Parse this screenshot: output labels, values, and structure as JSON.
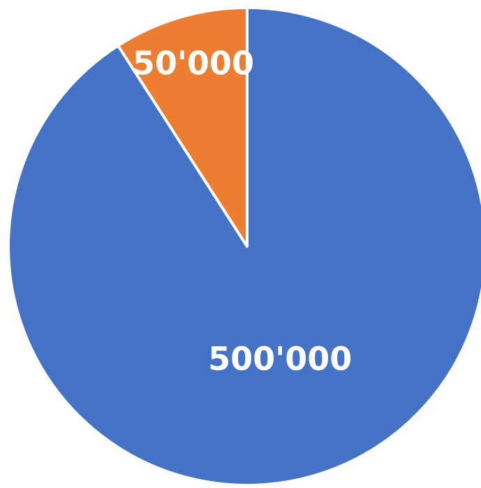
{
  "chart_data": {
    "type": "pie",
    "categories": [
      "",
      ""
    ],
    "values": [
      500000,
      50000
    ],
    "data_labels": [
      "500'000",
      "50'000"
    ],
    "colors": [
      "#4472C4",
      "#ED7D31"
    ],
    "start_angle_deg": 0,
    "direction": "clockwise",
    "slice_border_color": "#ffffff",
    "legend": "none",
    "title": ""
  }
}
